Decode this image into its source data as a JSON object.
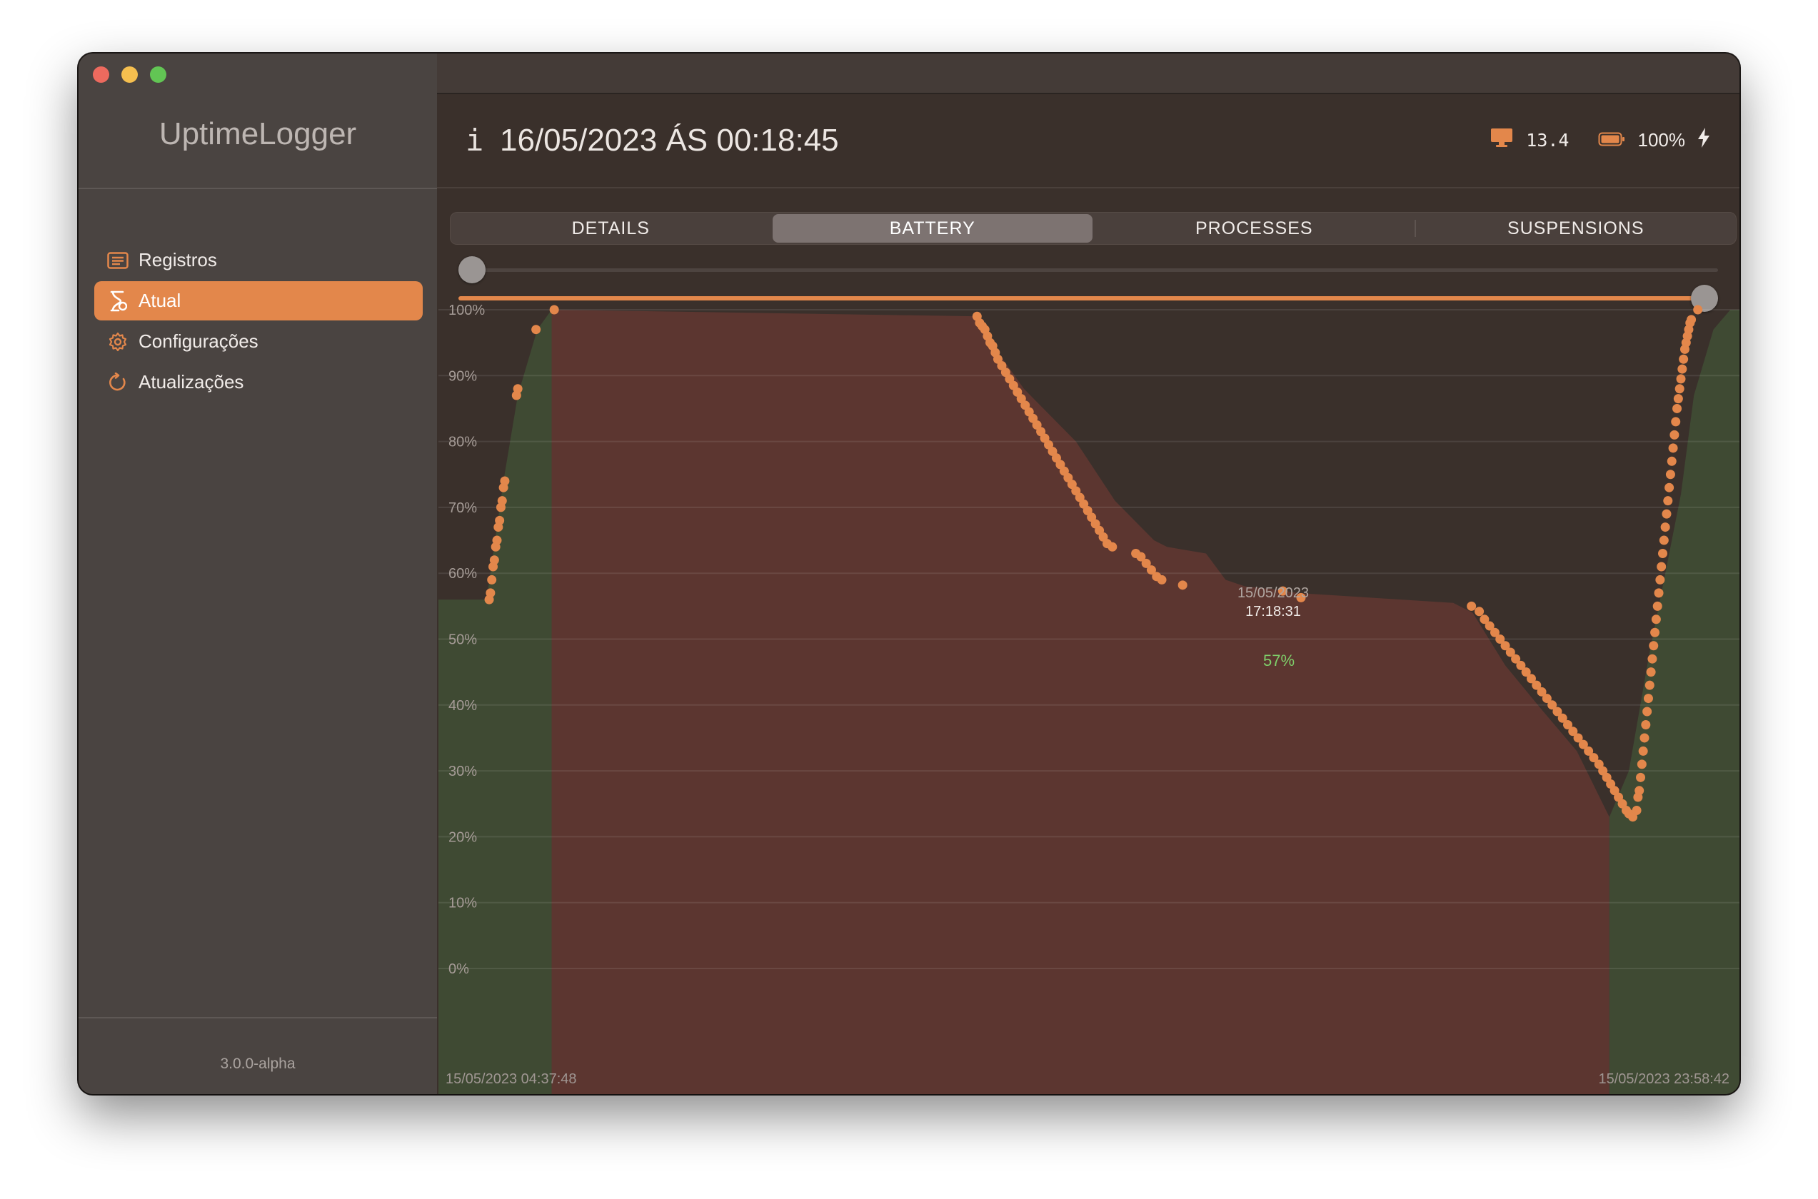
{
  "app": {
    "title": "UptimeLogger",
    "version": "3.0.0-alpha"
  },
  "sidebar": {
    "items": [
      {
        "label": "Registros",
        "icon": "list-icon",
        "active": false
      },
      {
        "label": "Atual",
        "icon": "hourglass-icon",
        "active": true
      },
      {
        "label": "Configurações",
        "icon": "gear-icon",
        "active": false
      },
      {
        "label": "Atualizações",
        "icon": "refresh-icon",
        "active": false
      }
    ]
  },
  "header": {
    "info_label": "i",
    "datetime": "16/05/2023 ÁS 00:18:45",
    "cpu_value": "13.4",
    "battery_percent": "100%"
  },
  "tabs": [
    {
      "label": "DETAILS",
      "active": false
    },
    {
      "label": "BATTERY",
      "active": true
    },
    {
      "label": "PROCESSES",
      "active": false
    },
    {
      "label": "SUSPENSIONS",
      "active": false
    }
  ],
  "range_slider": {
    "top_handle_fraction": 0.0,
    "bottom_handle_fraction": 1.0
  },
  "colors": {
    "accent": "#e3874b",
    "charging_fill": "#3f4a33",
    "discharging_fill": "#5c3630",
    "tooltip_value": "#7fcf6a"
  },
  "chart_data": {
    "type": "scatter",
    "y_ticks": [
      "100%",
      "90%",
      "80%",
      "70%",
      "60%",
      "50%",
      "40%",
      "30%",
      "20%",
      "10%",
      "0%"
    ],
    "ylim": [
      0,
      100
    ],
    "x_start_label": "15/05/2023 04:37:48",
    "x_end_label": "15/05/2023 23:58:42",
    "tooltip": {
      "date": "15/05/2023",
      "time": "17:18:31",
      "value": "57%"
    },
    "regions": [
      {
        "state": "charging",
        "from_fraction": 0.0,
        "to_fraction": 0.087
      },
      {
        "state": "discharging",
        "from_fraction": 0.087,
        "to_fraction": 0.9
      },
      {
        "state": "charging",
        "from_fraction": 0.9,
        "to_fraction": 1.0
      }
    ],
    "polyline": [
      [
        0.0,
        56
      ],
      [
        0.037,
        56
      ],
      [
        0.05,
        74
      ],
      [
        0.061,
        87
      ],
      [
        0.076,
        97
      ],
      [
        0.087,
        100
      ],
      [
        0.415,
        99
      ],
      [
        0.425,
        95
      ],
      [
        0.45,
        88
      ],
      [
        0.49,
        80
      ],
      [
        0.52,
        71
      ],
      [
        0.55,
        65
      ],
      [
        0.56,
        64
      ],
      [
        0.59,
        63
      ],
      [
        0.605,
        59
      ],
      [
        0.62,
        58
      ],
      [
        0.645,
        57.5
      ],
      [
        0.66,
        57
      ],
      [
        0.78,
        55.5
      ],
      [
        0.795,
        54
      ],
      [
        0.82,
        46
      ],
      [
        0.845,
        40
      ],
      [
        0.875,
        33
      ],
      [
        0.9,
        23
      ],
      [
        0.915,
        30
      ],
      [
        0.93,
        47
      ],
      [
        0.945,
        62
      ],
      [
        0.955,
        72
      ],
      [
        0.965,
        87
      ],
      [
        0.98,
        97
      ],
      [
        0.993,
        100
      ],
      [
        1.0,
        100
      ]
    ],
    "points": [
      [
        0.039,
        56
      ],
      [
        0.04,
        57
      ],
      [
        0.041,
        59
      ],
      [
        0.042,
        61
      ],
      [
        0.043,
        62
      ],
      [
        0.044,
        64
      ],
      [
        0.045,
        65
      ],
      [
        0.046,
        67
      ],
      [
        0.047,
        68
      ],
      [
        0.048,
        70
      ],
      [
        0.049,
        71
      ],
      [
        0.05,
        73
      ],
      [
        0.051,
        74
      ],
      [
        0.06,
        87
      ],
      [
        0.061,
        88
      ],
      [
        0.075,
        97
      ],
      [
        0.089,
        100
      ],
      [
        0.414,
        99
      ],
      [
        0.416,
        98
      ],
      [
        0.418,
        97.5
      ],
      [
        0.42,
        97
      ],
      [
        0.422,
        96
      ],
      [
        0.424,
        95
      ],
      [
        0.426,
        94.5
      ],
      [
        0.428,
        93.5
      ],
      [
        0.43,
        92.5
      ],
      [
        0.433,
        91.5
      ],
      [
        0.436,
        90.5
      ],
      [
        0.439,
        89.5
      ],
      [
        0.442,
        88.5
      ],
      [
        0.445,
        87.5
      ],
      [
        0.448,
        86.5
      ],
      [
        0.451,
        85.5
      ],
      [
        0.454,
        84.5
      ],
      [
        0.457,
        83.5
      ],
      [
        0.46,
        82.5
      ],
      [
        0.463,
        81.5
      ],
      [
        0.466,
        80.5
      ],
      [
        0.469,
        79.5
      ],
      [
        0.472,
        78.5
      ],
      [
        0.475,
        77.5
      ],
      [
        0.478,
        76.5
      ],
      [
        0.481,
        75.5
      ],
      [
        0.484,
        74.5
      ],
      [
        0.487,
        73.5
      ],
      [
        0.49,
        72.5
      ],
      [
        0.493,
        71.5
      ],
      [
        0.496,
        70.5
      ],
      [
        0.499,
        69.5
      ],
      [
        0.502,
        68.5
      ],
      [
        0.505,
        67.5
      ],
      [
        0.508,
        66.5
      ],
      [
        0.511,
        65.5
      ],
      [
        0.514,
        64.5
      ],
      [
        0.518,
        64
      ],
      [
        0.536,
        63
      ],
      [
        0.54,
        62.5
      ],
      [
        0.544,
        61.5
      ],
      [
        0.548,
        60.5
      ],
      [
        0.552,
        59.5
      ],
      [
        0.556,
        59
      ],
      [
        0.572,
        58.2
      ],
      [
        0.649,
        57.3
      ],
      [
        0.663,
        56.3
      ],
      [
        0.794,
        55
      ],
      [
        0.8,
        54.2
      ],
      [
        0.804,
        53
      ],
      [
        0.808,
        52
      ],
      [
        0.812,
        51
      ],
      [
        0.816,
        50
      ],
      [
        0.82,
        49
      ],
      [
        0.824,
        48
      ],
      [
        0.828,
        47
      ],
      [
        0.832,
        46
      ],
      [
        0.836,
        45
      ],
      [
        0.84,
        44
      ],
      [
        0.844,
        43
      ],
      [
        0.848,
        42
      ],
      [
        0.852,
        41
      ],
      [
        0.856,
        40
      ],
      [
        0.86,
        39
      ],
      [
        0.864,
        38
      ],
      [
        0.868,
        37
      ],
      [
        0.872,
        36
      ],
      [
        0.876,
        35
      ],
      [
        0.88,
        34
      ],
      [
        0.884,
        33
      ],
      [
        0.888,
        32
      ],
      [
        0.892,
        31
      ],
      [
        0.895,
        30
      ],
      [
        0.898,
        29
      ],
      [
        0.901,
        28
      ],
      [
        0.904,
        27
      ],
      [
        0.907,
        26
      ],
      [
        0.91,
        25
      ],
      [
        0.913,
        24
      ],
      [
        0.915,
        23.5
      ],
      [
        0.918,
        23
      ],
      [
        0.921,
        24
      ],
      [
        0.922,
        26
      ],
      [
        0.923,
        27
      ],
      [
        0.924,
        29
      ],
      [
        0.925,
        31
      ],
      [
        0.926,
        33
      ],
      [
        0.927,
        35
      ],
      [
        0.928,
        37
      ],
      [
        0.929,
        39
      ],
      [
        0.93,
        41
      ],
      [
        0.931,
        43
      ],
      [
        0.932,
        45
      ],
      [
        0.933,
        47
      ],
      [
        0.934,
        49
      ],
      [
        0.935,
        51
      ],
      [
        0.936,
        53
      ],
      [
        0.937,
        55
      ],
      [
        0.938,
        57
      ],
      [
        0.939,
        59
      ],
      [
        0.94,
        61
      ],
      [
        0.941,
        63
      ],
      [
        0.942,
        65
      ],
      [
        0.943,
        67
      ],
      [
        0.944,
        69
      ],
      [
        0.945,
        71
      ],
      [
        0.946,
        73
      ],
      [
        0.947,
        75
      ],
      [
        0.948,
        77
      ],
      [
        0.949,
        79
      ],
      [
        0.95,
        81
      ],
      [
        0.951,
        83
      ],
      [
        0.952,
        85
      ],
      [
        0.953,
        86.5
      ],
      [
        0.954,
        88
      ],
      [
        0.955,
        89.5
      ],
      [
        0.956,
        91
      ],
      [
        0.957,
        92.5
      ],
      [
        0.958,
        94
      ],
      [
        0.959,
        95
      ],
      [
        0.96,
        96
      ],
      [
        0.961,
        97
      ],
      [
        0.962,
        98
      ],
      [
        0.963,
        98.5
      ],
      [
        0.968,
        100
      ]
    ]
  }
}
